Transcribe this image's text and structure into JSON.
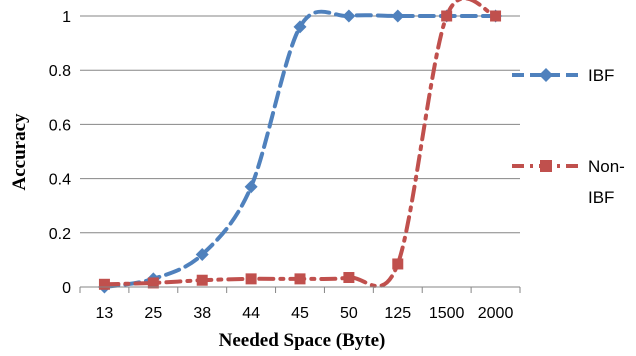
{
  "chart_data": {
    "type": "line",
    "title": "",
    "xlabel": "Needed Space (Byte)",
    "ylabel": "Accuracy",
    "categories": [
      "13",
      "25",
      "38",
      "44",
      "45",
      "50",
      "125",
      "1500",
      "2000"
    ],
    "ylim": [
      0,
      1
    ],
    "yticks": [
      "0",
      "0.2",
      "0.4",
      "0.6",
      "0.8",
      "1"
    ],
    "grid": "horizontal",
    "legend_position": "right",
    "series": [
      {
        "name": "IBF",
        "values": [
          0.0,
          0.03,
          0.12,
          0.37,
          0.96,
          1.0,
          1.0,
          1.0,
          1.0
        ],
        "color": "#4F81BD",
        "marker": "diamond",
        "style": "dashed"
      },
      {
        "name": "Non-IBF",
        "values": [
          0.01,
          0.015,
          0.025,
          0.03,
          0.03,
          0.035,
          0.085,
          1.0,
          1.0
        ],
        "color": "#C0504D",
        "marker": "square",
        "style": "dash-dot"
      }
    ]
  }
}
